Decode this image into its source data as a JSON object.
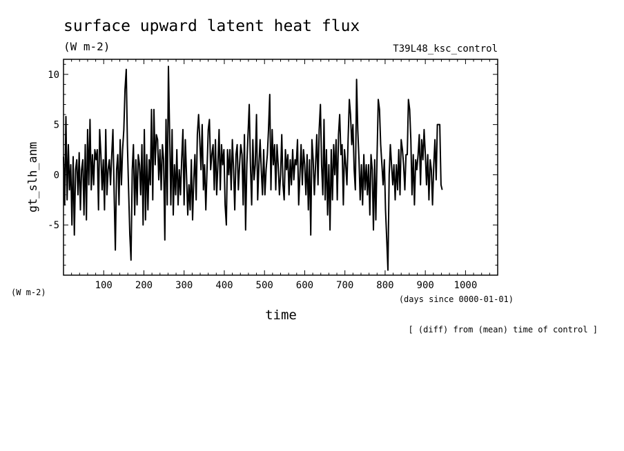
{
  "chart_data": {
    "type": "line",
    "title": "surface upward latent heat flux",
    "units": "(W m-2)",
    "experiment": "T39L48_ksc_control",
    "ylabel": "gt_slh_anm",
    "yunits": "(W m-2)",
    "xlabel": "time",
    "xunits": "(days since 0000-01-01)",
    "note": "[ (diff) from (mean) time of control ]",
    "xlim": [
      0,
      1080
    ],
    "ylim": [
      -10,
      11.5
    ],
    "x_ticks": [
      100,
      200,
      300,
      400,
      500,
      600,
      700,
      800,
      900,
      1000
    ],
    "y_ticks": [
      10,
      5,
      0,
      -5
    ],
    "grid": false,
    "series": [
      {
        "x_start": 0,
        "x_step": 3,
        "values": [
          1.8,
          -3.0,
          5.8,
          -2.5,
          3.0,
          -1.5,
          1.0,
          -5.0,
          1.8,
          -6.0,
          0.5,
          1.5,
          -2.0,
          2.2,
          -3.5,
          0.5,
          1.5,
          -4.0,
          3.0,
          -4.5,
          4.5,
          -1.0,
          5.5,
          -1.5,
          2.0,
          -1.0,
          2.5,
          1.5,
          2.5,
          -3.5,
          4.5,
          2.0,
          -1.5,
          1.5,
          -3.5,
          4.5,
          -2.0,
          0.5,
          1.5,
          -1.0,
          2.0,
          4.5,
          -2.0,
          -7.5,
          0.5,
          2.0,
          -3.0,
          3.5,
          -1.0,
          2.5,
          4.5,
          8.5,
          10.5,
          3.0,
          -1.5,
          -6.0,
          -8.5,
          0.5,
          3.0,
          -4.0,
          1.5,
          -3.0,
          2.0,
          1.0,
          -2.0,
          3.0,
          -5.0,
          4.5,
          -4.5,
          2.0,
          -3.5,
          1.5,
          -1.0,
          6.5,
          -2.5,
          6.5,
          1.0,
          4.0,
          3.5,
          -0.5,
          2.5,
          -1.5,
          3.0,
          1.5,
          -6.5,
          5.5,
          -3.0,
          10.8,
          4.0,
          -3.0,
          4.5,
          -4.0,
          1.0,
          -2.0,
          2.5,
          -3.0,
          0.5,
          -2.0,
          1.5,
          4.5,
          -3.0,
          3.5,
          0.0,
          -4.0,
          -1.0,
          -3.5,
          1.5,
          -4.5,
          -0.5,
          2.0,
          -2.5,
          4.0,
          6.0,
          3.5,
          0.5,
          5.0,
          -1.5,
          1.0,
          -3.5,
          0.5,
          4.5,
          5.5,
          0.5,
          2.0,
          3.0,
          -1.5,
          3.5,
          -2.0,
          1.0,
          4.5,
          -1.5,
          3.0,
          1.0,
          2.5,
          -3.0,
          -5.0,
          2.5,
          0.0,
          2.5,
          -1.5,
          3.5,
          0.5,
          -3.5,
          2.0,
          3.0,
          -1.5,
          1.0,
          3.0,
          2.0,
          -3.0,
          4.0,
          -5.5,
          1.0,
          4.0,
          7.0,
          1.0,
          -3.0,
          3.5,
          -0.5,
          1.0,
          6.0,
          -2.5,
          1.0,
          3.5,
          0.5,
          -2.0,
          2.5,
          -2.0,
          0.5,
          2.0,
          4.5,
          8.0,
          -1.5,
          4.5,
          1.0,
          3.0,
          -1.5,
          3.0,
          1.0,
          -2.0,
          0.0,
          4.0,
          -1.0,
          -2.5,
          2.5,
          0.5,
          2.0,
          -2.0,
          1.5,
          -1.0,
          2.5,
          -0.5,
          1.5,
          1.0,
          3.5,
          -3.0,
          0.0,
          3.0,
          -1.0,
          2.5,
          1.0,
          -2.0,
          2.0,
          -3.5,
          1.5,
          -6.0,
          3.5,
          1.5,
          -2.0,
          1.0,
          4.0,
          -1.0,
          4.5,
          7.0,
          1.0,
          -2.0,
          5.5,
          -2.5,
          2.5,
          -4.0,
          1.0,
          -5.5,
          2.5,
          -2.5,
          3.0,
          0.0,
          3.5,
          -2.5,
          4.0,
          6.0,
          2.0,
          3.0,
          -3.0,
          2.5,
          1.0,
          -1.0,
          3.5,
          7.5,
          6.0,
          3.0,
          5.0,
          0.5,
          -1.5,
          9.5,
          4.5,
          1.5,
          -2.5,
          1.0,
          -3.0,
          2.0,
          -1.5,
          1.0,
          -2.0,
          1.0,
          -4.0,
          2.0,
          0.5,
          -5.5,
          1.5,
          -4.5,
          2.0,
          7.5,
          6.5,
          3.0,
          1.0,
          -1.0,
          1.5,
          -3.5,
          -6.5,
          -9.5,
          0.0,
          3.0,
          1.0,
          -1.0,
          1.0,
          -2.5,
          1.0,
          -1.5,
          2.5,
          -2.0,
          3.5,
          2.5,
          1.0,
          -1.5,
          2.0,
          2.0,
          7.5,
          6.5,
          3.5,
          -2.0,
          2.0,
          -3.0,
          1.5,
          0.5,
          2.0,
          4.0,
          -1.0,
          3.5,
          1.5,
          4.5,
          2.0,
          -1.0,
          2.0,
          -2.5,
          1.5,
          0.5,
          -3.0,
          1.0,
          3.5,
          -0.5,
          5.0,
          5.0,
          5.0,
          -1.0,
          -1.5
        ]
      }
    ]
  }
}
